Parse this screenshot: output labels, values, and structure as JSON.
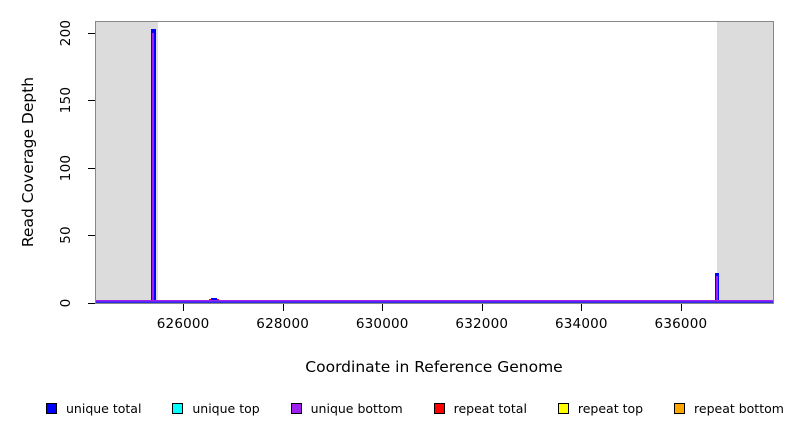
{
  "chart_data": {
    "type": "line",
    "title": "",
    "xlabel": "Coordinate in Reference Genome",
    "ylabel": "Read Coverage Depth",
    "xlim": [
      624250,
      637850
    ],
    "ylim": [
      0,
      208
    ],
    "x_ticks": [
      626000,
      628000,
      630000,
      632000,
      634000,
      636000
    ],
    "y_ticks": [
      0,
      50,
      100,
      150,
      200
    ],
    "grid": false,
    "legend_position": "bottom",
    "frame_color": "#878787",
    "shaded_region_color": "#DCDCDC",
    "shaded_regions": [
      {
        "from": 624250,
        "to": 625500
      },
      {
        "from": 636725,
        "to": 637850
      }
    ],
    "series": [
      {
        "name": "unique total",
        "color": "#0000FF",
        "z": 2,
        "baseline": 0,
        "spikes": [
          {
            "x": 625400,
            "y": 203,
            "w": 5
          },
          {
            "x": 626630,
            "y": 4,
            "w": 6
          },
          {
            "x": 636725,
            "y": 22,
            "w": 4
          }
        ]
      },
      {
        "name": "unique top",
        "color": "#00FFFF",
        "z": 0,
        "baseline": 0,
        "spikes": []
      },
      {
        "name": "unique bottom",
        "color": "#A020F0",
        "z": 3,
        "baseline": 0,
        "spikes": [
          {
            "x": 625400,
            "y": 200,
            "w": 2
          },
          {
            "x": 636725,
            "y": 20,
            "w": 2
          }
        ]
      },
      {
        "name": "repeat total",
        "color": "#FF0000",
        "z": 1,
        "baseline": 0,
        "spikes": [
          {
            "x": 626630,
            "y": 3,
            "w": 10
          }
        ]
      },
      {
        "name": "repeat top",
        "color": "#FFFF00",
        "z": 0,
        "baseline": 0,
        "spikes": []
      },
      {
        "name": "repeat bottom",
        "color": "#FFA500",
        "z": 0,
        "baseline": 0,
        "spikes": []
      }
    ]
  }
}
